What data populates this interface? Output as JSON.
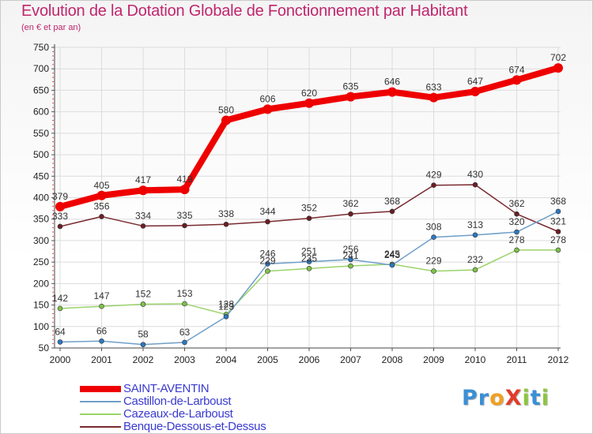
{
  "title": "Evolution de la Dotation Globale de Fonctionnement par Habitant",
  "subtitle": "(en € et par an)",
  "logo": {
    "text": "ProXiti",
    "letters": [
      {
        "ch": "P",
        "color": "#3a8fd6"
      },
      {
        "ch": "r",
        "color": "#3a8fd6"
      },
      {
        "ch": "o",
        "color": "#f0a020"
      },
      {
        "ch": "X",
        "color": "#e23b2a"
      },
      {
        "ch": "i",
        "color": "#8cc63f"
      },
      {
        "ch": "t",
        "color": "#3a8fd6"
      },
      {
        "ch": "i",
        "color": "#8cc63f"
      }
    ]
  },
  "chart_data": {
    "type": "line",
    "title": "Evolution de la Dotation Globale de Fonctionnement par Habitant",
    "subtitle": "(en € et par an)",
    "xlabel": "",
    "ylabel": "",
    "x": [
      "2000",
      "2001",
      "2002",
      "2003",
      "2004",
      "2005",
      "2006",
      "2007",
      "2008",
      "2009",
      "2010",
      "2011",
      "2012"
    ],
    "ylim": [
      50,
      750
    ],
    "yticks": [
      50,
      100,
      150,
      200,
      250,
      300,
      350,
      400,
      450,
      500,
      550,
      600,
      650,
      700,
      750
    ],
    "grid": true,
    "legend_position": "bottom-left",
    "series": [
      {
        "name": "SAINT-AVENTIN",
        "color": "#ee0000",
        "marker": "#ee0000",
        "values": [
          379,
          405,
          417,
          419,
          580,
          606,
          620,
          635,
          646,
          633,
          647,
          674,
          702
        ]
      },
      {
        "name": "Castillon-de-Larboust",
        "color": "#6f9fc8",
        "marker": "#2d78c0",
        "values": [
          64,
          66,
          58,
          63,
          123,
          246,
          251,
          256,
          243,
          308,
          313,
          320,
          368
        ]
      },
      {
        "name": "Cazeaux-de-Larboust",
        "color": "#9ad36b",
        "marker": "#7ec14b",
        "values": [
          142,
          147,
          152,
          153,
          128,
          229,
          235,
          241,
          245,
          229,
          232,
          278,
          278
        ]
      },
      {
        "name": "Benque-Dessous-et-Dessus",
        "color": "#7a2a30",
        "marker": "#6b1e24",
        "values": [
          333,
          356,
          334,
          335,
          338,
          344,
          352,
          362,
          368,
          429,
          430,
          362,
          321
        ]
      }
    ]
  }
}
